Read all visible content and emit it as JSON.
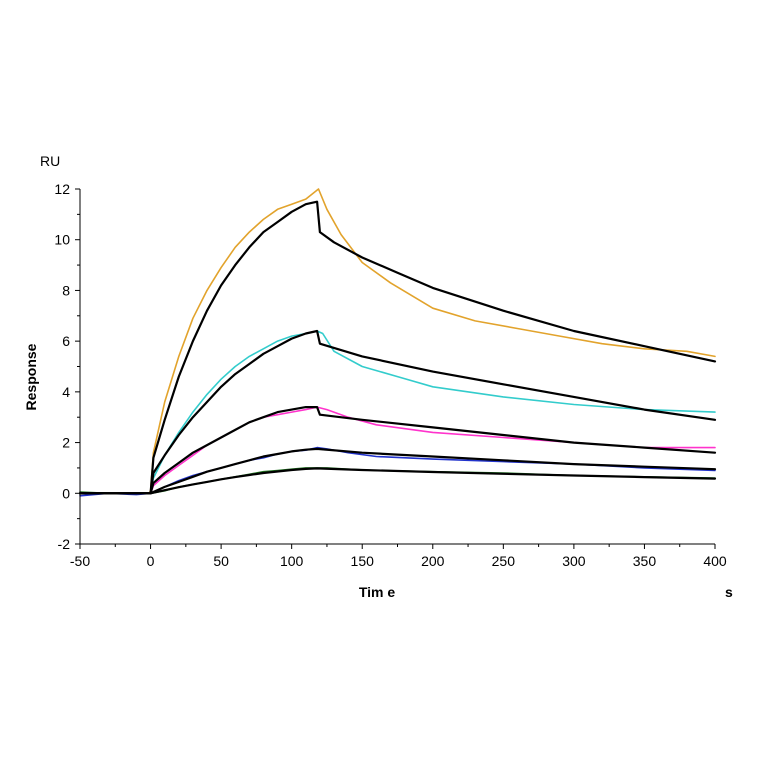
{
  "chart_data": {
    "type": "line",
    "title": "",
    "xlabel": "Tim e",
    "ylabel": "Response",
    "x_unit": "s",
    "y_unit": "RU",
    "xlim": [
      -50,
      400
    ],
    "ylim": [
      -2,
      12
    ],
    "x_ticks": [
      -50,
      0,
      50,
      100,
      150,
      200,
      250,
      300,
      350,
      400
    ],
    "y_ticks": [
      -2,
      0,
      2,
      4,
      6,
      8,
      10,
      12
    ],
    "grid": false,
    "legend": "none",
    "series": [
      {
        "color": "#e2a32c",
        "role": "measured",
        "x": [
          -50,
          -25,
          -1,
          0,
          2,
          10,
          20,
          30,
          40,
          50,
          60,
          70,
          80,
          90,
          100,
          110,
          119,
          125,
          135,
          150,
          170,
          200,
          230,
          260,
          290,
          320,
          350,
          380,
          400
        ],
        "y": [
          0,
          0,
          0,
          0.1,
          1.6,
          3.6,
          5.4,
          6.9,
          8.0,
          8.9,
          9.7,
          10.3,
          10.8,
          11.2,
          11.4,
          11.6,
          12.0,
          11.2,
          10.2,
          9.1,
          8.3,
          7.3,
          6.8,
          6.5,
          6.2,
          5.9,
          5.7,
          5.6,
          5.4
        ]
      },
      {
        "color": "#000000",
        "role": "fit",
        "x": [
          -50,
          0,
          2,
          10,
          20,
          30,
          40,
          50,
          60,
          70,
          80,
          90,
          100,
          110,
          118,
          120,
          130,
          150,
          175,
          200,
          250,
          300,
          350,
          400
        ],
        "y": [
          0,
          0,
          1.4,
          2.9,
          4.6,
          6.0,
          7.2,
          8.2,
          9.0,
          9.7,
          10.3,
          10.7,
          11.1,
          11.4,
          11.5,
          10.3,
          9.9,
          9.3,
          8.7,
          8.1,
          7.2,
          6.4,
          5.8,
          5.2
        ]
      },
      {
        "color": "#33cccc",
        "role": "measured",
        "x": [
          -50,
          0,
          2,
          10,
          20,
          30,
          40,
          50,
          60,
          70,
          80,
          90,
          100,
          110,
          118,
          122,
          130,
          150,
          175,
          200,
          250,
          300,
          350,
          400
        ],
        "y": [
          0,
          0,
          0.6,
          1.5,
          2.4,
          3.2,
          3.9,
          4.5,
          5.0,
          5.4,
          5.7,
          6.0,
          6.2,
          6.3,
          6.4,
          6.3,
          5.6,
          5.0,
          4.6,
          4.2,
          3.8,
          3.5,
          3.3,
          3.2
        ]
      },
      {
        "color": "#000000",
        "role": "fit",
        "x": [
          -50,
          0,
          2,
          10,
          20,
          30,
          40,
          50,
          60,
          70,
          80,
          90,
          100,
          110,
          118,
          120,
          150,
          200,
          250,
          300,
          350,
          400
        ],
        "y": [
          0,
          0,
          0.8,
          1.5,
          2.3,
          3.0,
          3.6,
          4.2,
          4.7,
          5.1,
          5.5,
          5.8,
          6.1,
          6.3,
          6.4,
          5.9,
          5.4,
          4.8,
          4.3,
          3.8,
          3.3,
          2.9
        ]
      },
      {
        "color": "#ff33cc",
        "role": "measured",
        "x": [
          -50,
          0,
          2,
          10,
          20,
          30,
          40,
          50,
          60,
          70,
          80,
          90,
          100,
          110,
          118,
          125,
          140,
          160,
          200,
          250,
          300,
          350,
          400
        ],
        "y": [
          0,
          0,
          0.3,
          0.7,
          1.1,
          1.5,
          1.9,
          2.2,
          2.5,
          2.8,
          3.0,
          3.1,
          3.2,
          3.3,
          3.4,
          3.3,
          3.0,
          2.7,
          2.4,
          2.2,
          2.0,
          1.8,
          1.8
        ]
      },
      {
        "color": "#000000",
        "role": "fit",
        "x": [
          -50,
          0,
          2,
          10,
          20,
          30,
          40,
          50,
          60,
          70,
          80,
          90,
          100,
          110,
          118,
          120,
          150,
          200,
          250,
          300,
          350,
          400
        ],
        "y": [
          0,
          0,
          0.4,
          0.8,
          1.2,
          1.6,
          1.9,
          2.2,
          2.5,
          2.8,
          3.0,
          3.2,
          3.3,
          3.4,
          3.4,
          3.1,
          2.9,
          2.6,
          2.3,
          2.0,
          1.8,
          1.6
        ]
      },
      {
        "color": "#2233cc",
        "role": "measured",
        "x": [
          -50,
          -30,
          -10,
          0,
          10,
          20,
          30,
          40,
          50,
          60,
          70,
          80,
          90,
          100,
          110,
          118,
          125,
          140,
          160,
          200,
          250,
          300,
          350,
          400
        ],
        "y": [
          -0.1,
          0,
          -0.05,
          0,
          0.25,
          0.5,
          0.7,
          0.85,
          1.0,
          1.15,
          1.3,
          1.4,
          1.55,
          1.65,
          1.7,
          1.8,
          1.75,
          1.6,
          1.45,
          1.35,
          1.25,
          1.15,
          1.0,
          0.9
        ]
      },
      {
        "color": "#000000",
        "role": "fit",
        "x": [
          -50,
          0,
          10,
          20,
          30,
          40,
          50,
          60,
          70,
          80,
          90,
          100,
          110,
          118,
          150,
          200,
          250,
          300,
          350,
          400
        ],
        "y": [
          0,
          0,
          0.25,
          0.45,
          0.65,
          0.85,
          1.0,
          1.15,
          1.3,
          1.45,
          1.55,
          1.65,
          1.72,
          1.75,
          1.6,
          1.45,
          1.3,
          1.15,
          1.05,
          0.95
        ]
      },
      {
        "color": "#227722",
        "role": "measured",
        "x": [
          -50,
          -30,
          -10,
          0,
          10,
          20,
          30,
          40,
          50,
          60,
          70,
          80,
          90,
          100,
          110,
          118,
          125,
          140,
          160,
          200,
          250,
          300,
          350,
          400
        ],
        "y": [
          0.05,
          0,
          0,
          0,
          0.1,
          0.25,
          0.35,
          0.45,
          0.55,
          0.65,
          0.75,
          0.85,
          0.9,
          0.95,
          1.0,
          1.0,
          1.0,
          0.95,
          0.9,
          0.85,
          0.8,
          0.7,
          0.65,
          0.6
        ]
      },
      {
        "color": "#000000",
        "role": "fit",
        "x": [
          -50,
          0,
          10,
          20,
          30,
          40,
          50,
          60,
          70,
          80,
          90,
          100,
          110,
          118,
          150,
          200,
          250,
          300,
          350,
          400
        ],
        "y": [
          0,
          0,
          0.12,
          0.24,
          0.35,
          0.45,
          0.55,
          0.64,
          0.72,
          0.8,
          0.86,
          0.92,
          0.96,
          0.98,
          0.92,
          0.84,
          0.77,
          0.7,
          0.64,
          0.58
        ]
      }
    ]
  }
}
